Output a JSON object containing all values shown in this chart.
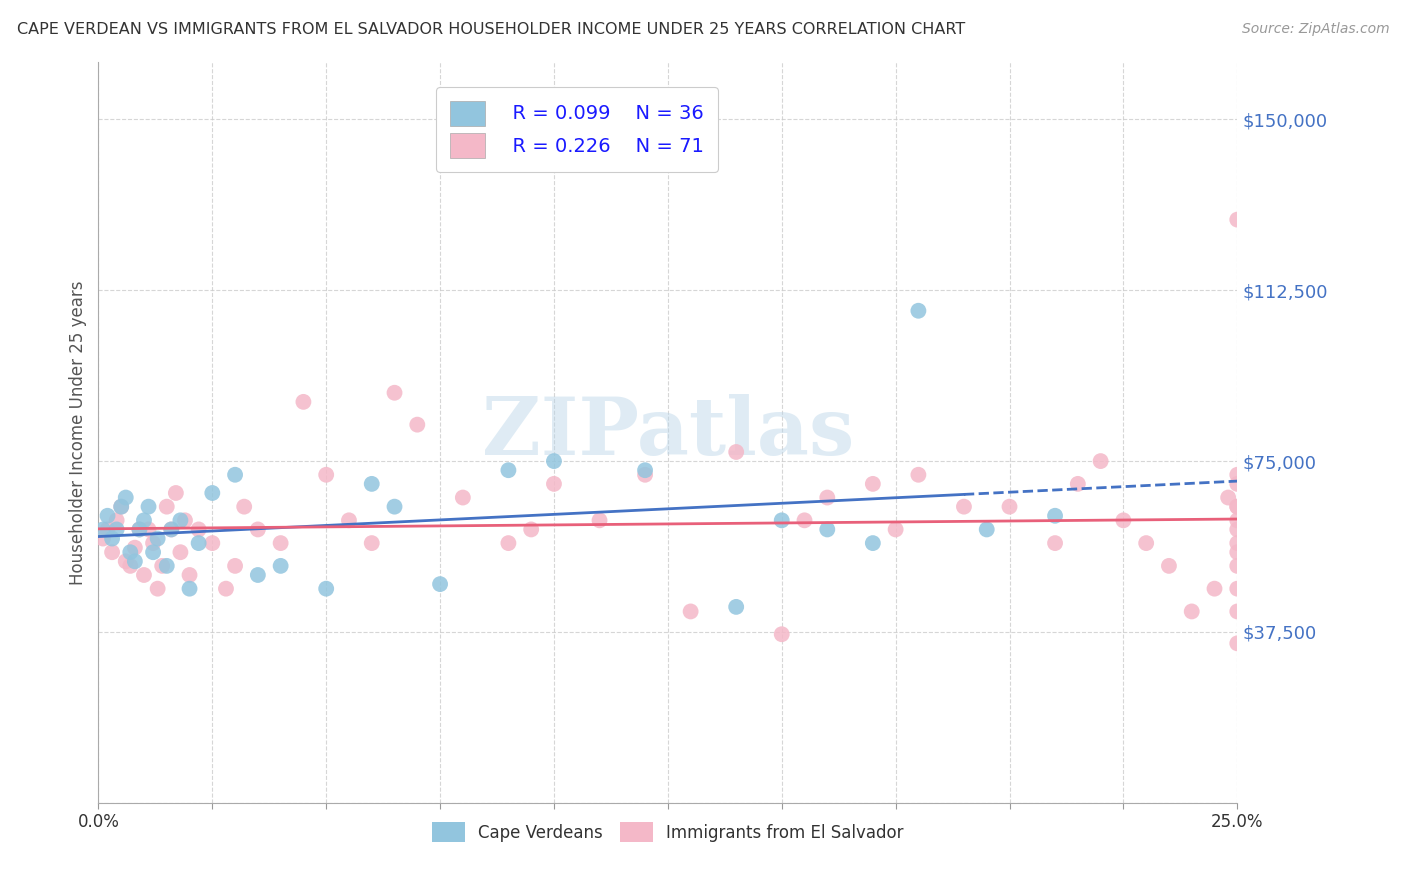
{
  "title": "CAPE VERDEAN VS IMMIGRANTS FROM EL SALVADOR HOUSEHOLDER INCOME UNDER 25 YEARS CORRELATION CHART",
  "source": "Source: ZipAtlas.com",
  "ylabel": "Householder Income Under 25 years",
  "xlim": [
    0.0,
    0.25
  ],
  "ylim": [
    0,
    162500
  ],
  "yticks": [
    0,
    37500,
    75000,
    112500,
    150000
  ],
  "ytick_labels": [
    "",
    "$37,500",
    "$75,000",
    "$112,500",
    "$150,000"
  ],
  "xticks": [
    0.0,
    0.025,
    0.05,
    0.075,
    0.1,
    0.125,
    0.15,
    0.175,
    0.2,
    0.225,
    0.25
  ],
  "xtick_labels": [
    "0.0%",
    "",
    "",
    "",
    "",
    "",
    "",
    "",
    "",
    "",
    "25.0%"
  ],
  "watermark": "ZIPatlas",
  "legend_r1": "R = 0.099",
  "legend_n1": "N = 36",
  "legend_r2": "R = 0.226",
  "legend_n2": "N = 71",
  "blue_color": "#92c5de",
  "pink_color": "#f4b8c8",
  "blue_line_color": "#4472c4",
  "pink_line_color": "#e8607a",
  "label1": "Cape Verdeans",
  "label2": "Immigrants from El Salvador",
  "blue_scatter_x": [
    0.001,
    0.002,
    0.003,
    0.004,
    0.005,
    0.006,
    0.007,
    0.008,
    0.009,
    0.01,
    0.011,
    0.012,
    0.013,
    0.015,
    0.016,
    0.018,
    0.02,
    0.022,
    0.025,
    0.03,
    0.035,
    0.04,
    0.05,
    0.06,
    0.065,
    0.075,
    0.09,
    0.1,
    0.12,
    0.14,
    0.15,
    0.16,
    0.17,
    0.18,
    0.195,
    0.21
  ],
  "blue_scatter_y": [
    60000,
    63000,
    58000,
    60000,
    65000,
    67000,
    55000,
    53000,
    60000,
    62000,
    65000,
    55000,
    58000,
    52000,
    60000,
    62000,
    47000,
    57000,
    68000,
    72000,
    50000,
    52000,
    47000,
    70000,
    65000,
    48000,
    73000,
    75000,
    73000,
    43000,
    62000,
    60000,
    57000,
    108000,
    60000,
    63000
  ],
  "pink_scatter_x": [
    0.001,
    0.002,
    0.003,
    0.004,
    0.005,
    0.006,
    0.007,
    0.008,
    0.009,
    0.01,
    0.011,
    0.012,
    0.013,
    0.014,
    0.015,
    0.016,
    0.017,
    0.018,
    0.019,
    0.02,
    0.022,
    0.025,
    0.028,
    0.03,
    0.032,
    0.035,
    0.04,
    0.045,
    0.05,
    0.055,
    0.06,
    0.065,
    0.07,
    0.08,
    0.09,
    0.095,
    0.1,
    0.11,
    0.12,
    0.13,
    0.14,
    0.15,
    0.155,
    0.16,
    0.17,
    0.175,
    0.18,
    0.19,
    0.2,
    0.21,
    0.215,
    0.22,
    0.225,
    0.23,
    0.235,
    0.24,
    0.245,
    0.248,
    0.25,
    0.25,
    0.25,
    0.25,
    0.25,
    0.25,
    0.25,
    0.25,
    0.25,
    0.25,
    0.25,
    0.25,
    0.25
  ],
  "pink_scatter_y": [
    58000,
    60000,
    55000,
    62000,
    65000,
    53000,
    52000,
    56000,
    60000,
    50000,
    60000,
    57000,
    47000,
    52000,
    65000,
    60000,
    68000,
    55000,
    62000,
    50000,
    60000,
    57000,
    47000,
    52000,
    65000,
    60000,
    57000,
    88000,
    72000,
    62000,
    57000,
    90000,
    83000,
    67000,
    57000,
    60000,
    70000,
    62000,
    72000,
    42000,
    77000,
    37000,
    62000,
    67000,
    70000,
    60000,
    72000,
    65000,
    65000,
    57000,
    70000,
    75000,
    62000,
    57000,
    52000,
    42000,
    47000,
    67000,
    72000,
    60000,
    65000,
    57000,
    62000,
    47000,
    55000,
    128000,
    35000,
    65000,
    70000,
    52000,
    42000
  ]
}
